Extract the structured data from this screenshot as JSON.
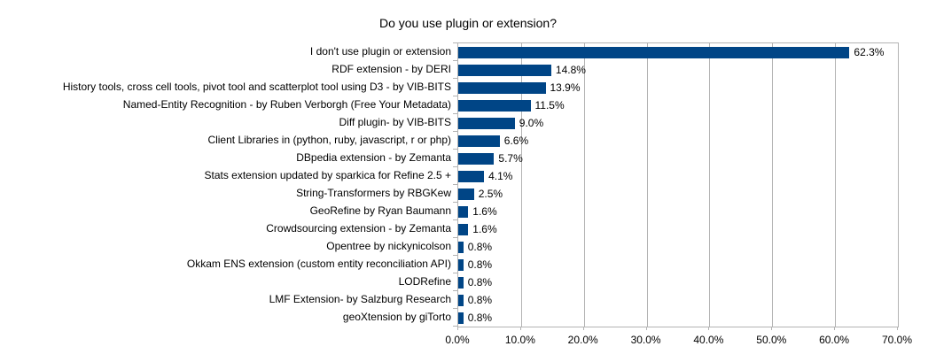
{
  "chart_title": "Do you use plugin or extension?",
  "style": {
    "bar_color": "#004586",
    "grid_color": "#b3b3b3",
    "text_color": "#000000",
    "background_color": "#ffffff"
  },
  "chart_data": {
    "type": "bar",
    "orientation": "horizontal",
    "title": "Do you use plugin or extension?",
    "categories": [
      "I don't use plugin or extension",
      "RDF extension - by DERI",
      "History tools, cross cell tools, pivot tool and scatterplot tool using D3 - by VIB-BITS",
      "Named-Entity Recognition - by Ruben Verborgh (Free Your Metadata)",
      "Diff plugin- by VIB-BITS",
      "Client Libraries in (python, ruby, javascript, r or php)",
      "DBpedia extension - by Zemanta",
      "Stats extension updated by sparkica for Refine 2.5 +",
      "String-Transformers by RBGKew",
      "GeoRefine by Ryan Baumann",
      "Crowdsourcing extension - by Zemanta",
      "Opentree by nickynicolson",
      "Okkam ENS extension (custom entity reconciliation API)",
      "LODRefine",
      "LMF Extension- by Salzburg Research",
      "geoXtension by giTorto"
    ],
    "values": [
      62.3,
      14.8,
      13.9,
      11.5,
      9.0,
      6.6,
      5.7,
      4.1,
      2.5,
      1.6,
      1.6,
      0.8,
      0.8,
      0.8,
      0.8,
      0.8
    ],
    "value_labels": [
      "62.3%",
      "14.8%",
      "13.9%",
      "11.5%",
      "9.0%",
      "6.6%",
      "5.7%",
      "4.1%",
      "2.5%",
      "1.6%",
      "1.6%",
      "0.8%",
      "0.8%",
      "0.8%",
      "0.8%",
      "0.8%"
    ],
    "xlabel": "",
    "ylabel": "",
    "xlim": [
      0,
      70
    ],
    "xticks": [
      "0.0%",
      "10.0%",
      "20.0%",
      "30.0%",
      "40.0%",
      "50.0%",
      "60.0%",
      "70.0%"
    ],
    "grid": "vertical",
    "legend": "none"
  }
}
